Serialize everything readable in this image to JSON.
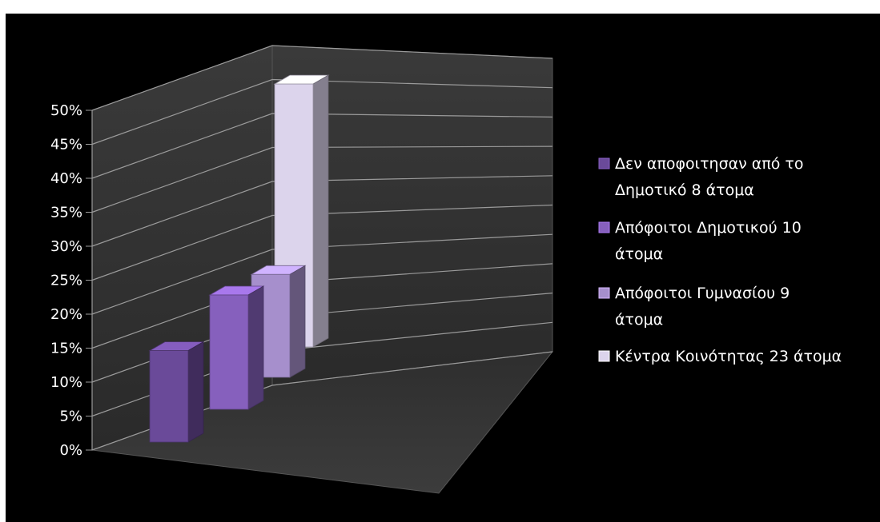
{
  "chart_data": {
    "type": "bar",
    "title": "",
    "xlabel": "",
    "ylabel": "",
    "ylim": [
      0,
      50
    ],
    "yticks": [
      "0%",
      "5%",
      "10%",
      "15%",
      "20%",
      "25%",
      "30%",
      "35%",
      "40%",
      "45%",
      "50%"
    ],
    "grid": true,
    "legend_position": "right",
    "series": [
      {
        "name": "Δεν αποφοιτησαν από το Δημοτικό 8 άτομα",
        "value": 16,
        "legend_lines": [
          "Δεν αποφοιτησαν από το",
          "Δημοτικό 8 άτομα"
        ],
        "color": "#6a4a99"
      },
      {
        "name": "Απόφοιτοι Δημοτικού 10 άτομα",
        "value": 20,
        "legend_lines": [
          "Απόφοιτοι Δημοτικού 10",
          "άτομα"
        ],
        "color": "#8660bd"
      },
      {
        "name": "Απόφοιτοι  Γυμνασίου  9 άτομα",
        "value": 18,
        "legend_lines": [
          "Απόφοιτοι  Γυμνασίου  9",
          "άτομα"
        ],
        "color": "#a68fcc"
      },
      {
        "name": "Κέντρα Κοινότητας 23 άτομα",
        "value": 46,
        "legend_lines": [
          "Κέντρα Κοινότητας 23 άτομα"
        ],
        "color": "#dcd4ec"
      }
    ]
  }
}
